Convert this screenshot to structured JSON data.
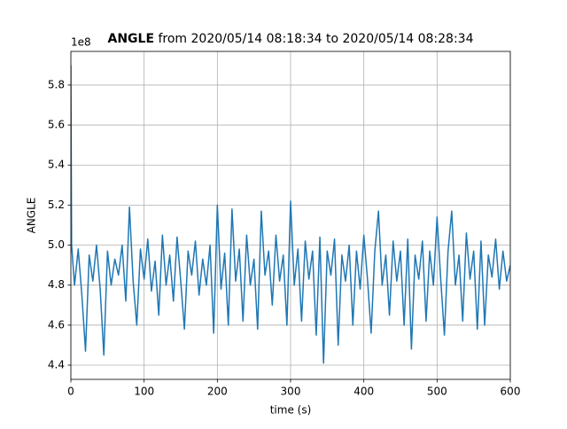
{
  "chart_data": {
    "type": "line",
    "title_bold": "ANGLE",
    "title": "from 2020/05/14 08:18:34 to 2020/05/14 08:28:34",
    "offset_label": "1e8",
    "xlabel": "time (s)",
    "ylabel": "ANGLE",
    "x": [
      0,
      1,
      5,
      10,
      15,
      20,
      25,
      30,
      35,
      40,
      45,
      50,
      55,
      60,
      65,
      70,
      75,
      80,
      85,
      90,
      95,
      100,
      105,
      110,
      115,
      120,
      125,
      130,
      135,
      140,
      145,
      150,
      155,
      160,
      165,
      170,
      175,
      180,
      185,
      190,
      195,
      200,
      205,
      210,
      215,
      220,
      225,
      230,
      235,
      240,
      245,
      250,
      255,
      260,
      265,
      270,
      275,
      280,
      285,
      290,
      295,
      300,
      305,
      310,
      315,
      320,
      325,
      330,
      335,
      340,
      345,
      350,
      355,
      360,
      365,
      370,
      375,
      380,
      385,
      390,
      395,
      400,
      405,
      410,
      415,
      420,
      425,
      430,
      435,
      440,
      445,
      450,
      455,
      460,
      465,
      470,
      475,
      480,
      485,
      490,
      495,
      500,
      505,
      510,
      515,
      520,
      525,
      530,
      535,
      540,
      545,
      550,
      555,
      560,
      565,
      570,
      575,
      580,
      585,
      590,
      595,
      600
    ],
    "series": [
      {
        "name": "ANGLE",
        "color": "#1f77b4",
        "values": [
          5.9,
          5.0,
          4.8,
          4.98,
          4.75,
          4.47,
          4.95,
          4.82,
          5.0,
          4.78,
          4.45,
          4.97,
          4.8,
          4.93,
          4.85,
          5.0,
          4.72,
          5.19,
          4.82,
          4.6,
          4.98,
          4.83,
          5.03,
          4.77,
          4.92,
          4.65,
          5.05,
          4.8,
          4.95,
          4.72,
          5.04,
          4.82,
          4.58,
          4.97,
          4.85,
          5.02,
          4.75,
          4.93,
          4.8,
          5.0,
          4.56,
          5.2,
          4.78,
          4.96,
          4.6,
          5.18,
          4.82,
          4.98,
          4.62,
          5.05,
          4.8,
          4.93,
          4.58,
          5.17,
          4.85,
          4.97,
          4.7,
          5.05,
          4.82,
          4.95,
          4.6,
          5.22,
          4.8,
          4.98,
          4.62,
          5.02,
          4.83,
          4.97,
          4.55,
          5.04,
          4.41,
          4.97,
          4.85,
          5.03,
          4.5,
          4.95,
          4.82,
          5.0,
          4.6,
          4.97,
          4.78,
          5.05,
          4.83,
          4.56,
          4.97,
          5.17,
          4.8,
          4.95,
          4.65,
          5.02,
          4.82,
          4.97,
          4.6,
          5.03,
          4.48,
          4.95,
          4.83,
          5.02,
          4.62,
          4.97,
          4.8,
          5.14,
          4.83,
          4.55,
          4.97,
          5.17,
          4.8,
          4.95,
          4.62,
          5.06,
          4.83,
          4.97,
          4.58,
          5.02,
          4.6,
          4.95,
          4.84,
          5.03,
          4.78,
          4.97,
          4.82,
          4.9
        ]
      }
    ],
    "xlim": [
      0,
      600
    ],
    "xticks": [
      0,
      100,
      200,
      300,
      400,
      500,
      600
    ],
    "ylim": [
      4.329,
      5.968
    ],
    "yticks": [
      4.4,
      4.6,
      4.8,
      {
        "value": 5,
        "label": "5.0"
      },
      5.2,
      5.4,
      5.6,
      5.8
    ],
    "grid": true
  }
}
